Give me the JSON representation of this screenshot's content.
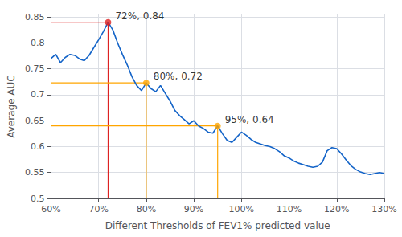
{
  "chart_data": {
    "type": "line",
    "xlabel": "Different Thresholds of FEV1% predicted value",
    "ylabel": "Average AUC",
    "x": [
      60,
      61,
      62,
      63,
      64,
      65,
      66,
      67,
      68,
      69,
      70,
      71,
      72,
      73,
      74,
      75,
      76,
      77,
      78,
      79,
      80,
      81,
      82,
      83,
      84,
      85,
      86,
      87,
      88,
      89,
      90,
      91,
      92,
      93,
      94,
      95,
      96,
      97,
      98,
      99,
      100,
      101,
      102,
      103,
      104,
      105,
      106,
      107,
      108,
      109,
      110,
      111,
      112,
      113,
      114,
      115,
      116,
      117,
      118,
      119,
      120,
      121,
      122,
      123,
      124,
      125,
      126,
      127,
      128,
      129,
      130
    ],
    "values": [
      0.77,
      0.778,
      0.762,
      0.772,
      0.778,
      0.776,
      0.769,
      0.766,
      0.776,
      0.791,
      0.806,
      0.822,
      0.84,
      0.825,
      0.8,
      0.778,
      0.758,
      0.735,
      0.718,
      0.708,
      0.723,
      0.712,
      0.706,
      0.718,
      0.703,
      0.688,
      0.67,
      0.66,
      0.652,
      0.644,
      0.65,
      0.64,
      0.635,
      0.628,
      0.626,
      0.64,
      0.625,
      0.612,
      0.608,
      0.618,
      0.628,
      0.622,
      0.614,
      0.608,
      0.605,
      0.602,
      0.6,
      0.596,
      0.59,
      0.582,
      0.578,
      0.572,
      0.568,
      0.565,
      0.562,
      0.56,
      0.562,
      0.57,
      0.592,
      0.598,
      0.596,
      0.586,
      0.574,
      0.563,
      0.556,
      0.551,
      0.548,
      0.546,
      0.548,
      0.55,
      0.548
    ],
    "color": "#1464c8",
    "xlim": [
      60,
      130
    ],
    "ylim": [
      0.5,
      0.855
    ],
    "xticks": [
      {
        "value": 60,
        "label": "60%"
      },
      {
        "value": 70,
        "label": "70%"
      },
      {
        "value": 80,
        "label": "80%"
      },
      {
        "value": 90,
        "label": "90%"
      },
      {
        "value": 100,
        "label": "100%"
      },
      {
        "value": 110,
        "label": "110%"
      },
      {
        "value": 120,
        "label": "120%"
      },
      {
        "value": 130,
        "label": "130%"
      }
    ],
    "yticks": [
      0.5,
      0.55,
      0.6,
      0.65,
      0.7,
      0.75,
      0.8,
      0.85
    ],
    "grid": true,
    "annotations": [
      {
        "x": 72,
        "y": 0.84,
        "label": "72%, 0.84",
        "color": "#dd2222"
      },
      {
        "x": 80,
        "y": 0.723,
        "label": "80%, 0.72",
        "color": "#ffa500"
      },
      {
        "x": 95,
        "y": 0.64,
        "label": "95%, 0.64",
        "color": "#ffa500"
      }
    ]
  }
}
